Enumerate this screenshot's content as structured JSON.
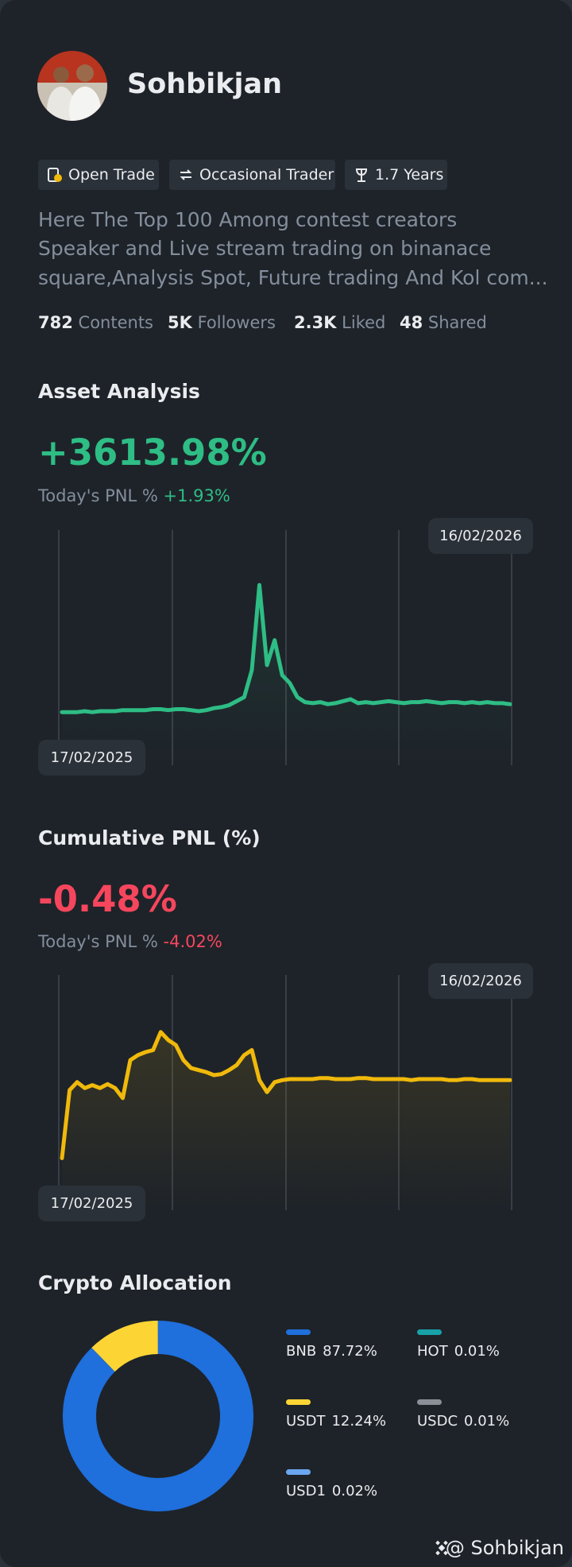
{
  "profile": {
    "name": "Sohbikjan"
  },
  "tags": [
    "Open Trade",
    "Occasional Trader",
    "1.7 Years"
  ],
  "bio": [
    "Here The Top 100 Among contest creators",
    "Speaker and Live stream trading on binanace",
    "square,Analysis Spot, Future trading And Kol com..."
  ],
  "stats": [
    {
      "value": "782",
      "label": "Contents"
    },
    {
      "value": "5K",
      "label": "Followers"
    },
    {
      "value": "2.3K",
      "label": "Liked"
    },
    {
      "value": "48",
      "label": "Shared"
    }
  ],
  "asset_analysis": {
    "title": "Asset Analysis",
    "headline": "+3613.98%",
    "today_label": "Today's PNL %",
    "today_value": "+1.93%",
    "start_date": "17/02/2025",
    "end_date": "16/02/2026",
    "chart_data": {
      "type": "line",
      "color": "#2ebd85",
      "ylim": [
        0,
        235
      ],
      "values": [
        53,
        53,
        53,
        54,
        53,
        54,
        54,
        54,
        55,
        55,
        55,
        55,
        56,
        56,
        55,
        56,
        56,
        55,
        54,
        55,
        57,
        58,
        60,
        64,
        68,
        95,
        180,
        100,
        125,
        90,
        82,
        68,
        63,
        62,
        63,
        61,
        62,
        64,
        66,
        62,
        63,
        62,
        63,
        64,
        63,
        62,
        63,
        63,
        64,
        63,
        62,
        63,
        63,
        62,
        63,
        62,
        63,
        62,
        62,
        61
      ]
    }
  },
  "cumulative_pnl": {
    "title": "Cumulative PNL (%)",
    "headline": "-0.48%",
    "today_label": "Today's PNL %",
    "today_value": "-4.02%",
    "start_date": "17/02/2025",
    "end_date": "16/02/2026",
    "chart_data": {
      "type": "line",
      "color": "#f0b90b",
      "ylim": [
        0,
        235
      ],
      "values": [
        52,
        120,
        128,
        122,
        125,
        122,
        126,
        122,
        112,
        150,
        155,
        158,
        160,
        178,
        170,
        165,
        150,
        142,
        140,
        138,
        135,
        136,
        140,
        145,
        155,
        160,
        130,
        118,
        128,
        130,
        131,
        131,
        131,
        131,
        132,
        132,
        131,
        131,
        131,
        132,
        132,
        131,
        131,
        131,
        131,
        131,
        130,
        131,
        131,
        131,
        131,
        130,
        130,
        131,
        131,
        130,
        130,
        130,
        130,
        130
      ]
    }
  },
  "allocation": {
    "title": "Crypto Allocation",
    "chart_data": {
      "type": "donut",
      "series": [
        {
          "name": "BNB",
          "color": "#1f6fdc",
          "values": [
            87.72
          ],
          "value_labels": [
            "87.72%"
          ]
        },
        {
          "name": "USDT",
          "color": "#fcd535",
          "values": [
            12.24
          ],
          "value_labels": [
            "12.24%"
          ]
        },
        {
          "name": "USD1",
          "color": "#6aa7f0",
          "values": [
            0.02
          ],
          "value_labels": [
            "0.02%"
          ]
        },
        {
          "name": "HOT",
          "color": "#17a2a8",
          "values": [
            0.01
          ],
          "value_labels": [
            "0.01%"
          ]
        },
        {
          "name": "USDC",
          "color": "#8a8f98",
          "values": [
            0.01
          ],
          "value_labels": [
            "0.01%"
          ]
        }
      ]
    }
  },
  "footer": {
    "handle": "@ Sohbikjan"
  }
}
